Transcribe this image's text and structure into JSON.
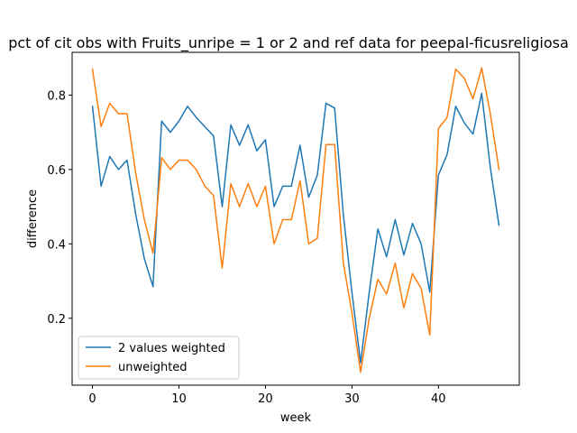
{
  "chart_data": {
    "type": "line",
    "title": "pct of cit obs with Fruits_unripe = 1 or 2 and ref data for peepal-ficusreligiosa",
    "xlabel": "week",
    "ylabel": "difference",
    "xlim": [
      -2.35,
      49.35
    ],
    "ylim": [
      0.02,
      0.915
    ],
    "xticks": [
      0,
      10,
      20,
      30,
      40
    ],
    "yticks": [
      0.2,
      0.4,
      0.6,
      0.8
    ],
    "legend_position": "lower left",
    "x": [
      0,
      1,
      2,
      3,
      4,
      5,
      6,
      7,
      8,
      9,
      10,
      11,
      12,
      13,
      14,
      15,
      16,
      17,
      18,
      19,
      20,
      21,
      22,
      23,
      24,
      25,
      26,
      27,
      28,
      29,
      30,
      31,
      32,
      33,
      34,
      35,
      36,
      37,
      38,
      39,
      40,
      41,
      42,
      43,
      44,
      45,
      46,
      47
    ],
    "series": [
      {
        "name": "2 values weighted",
        "color": "#1f77b4",
        "values": [
          0.77,
          0.555,
          0.635,
          0.6,
          0.625,
          0.48,
          0.36,
          0.285,
          0.73,
          0.7,
          0.73,
          0.77,
          0.74,
          0.715,
          0.69,
          0.5,
          0.72,
          0.665,
          0.72,
          0.65,
          0.68,
          0.5,
          0.555,
          0.555,
          0.665,
          0.525,
          0.585,
          0.778,
          0.765,
          0.48,
          0.27,
          0.08,
          0.27,
          0.44,
          0.365,
          0.465,
          0.37,
          0.455,
          0.4,
          0.27,
          0.585,
          0.64,
          0.77,
          0.725,
          0.695,
          0.805,
          0.605,
          0.45
        ]
      },
      {
        "name": "unweighted",
        "color": "#ff7f0e",
        "values": [
          0.87,
          0.715,
          0.778,
          0.75,
          0.75,
          0.59,
          0.465,
          0.375,
          0.632,
          0.6,
          0.625,
          0.625,
          0.6,
          0.555,
          0.53,
          0.335,
          0.562,
          0.5,
          0.562,
          0.5,
          0.555,
          0.4,
          0.465,
          0.465,
          0.57,
          0.4,
          0.415,
          0.667,
          0.667,
          0.35,
          0.215,
          0.055,
          0.2,
          0.305,
          0.265,
          0.348,
          0.228,
          0.32,
          0.28,
          0.155,
          0.71,
          0.74,
          0.87,
          0.845,
          0.79,
          0.873,
          0.75,
          0.6
        ]
      }
    ]
  }
}
